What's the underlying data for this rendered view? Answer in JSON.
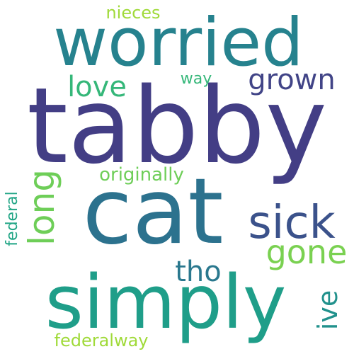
{
  "word_cloud": {
    "background": "#ffffff",
    "words": [
      {
        "id": "tabby",
        "text": "tabby",
        "color": "#433e85",
        "orientation": "horizontal"
      },
      {
        "id": "cat",
        "text": "cat",
        "color": "#2c728e",
        "orientation": "horizontal"
      },
      {
        "id": "worried",
        "text": "worried",
        "color": "#26828e",
        "orientation": "horizontal"
      },
      {
        "id": "simply",
        "text": "simply",
        "color": "#1f9e89",
        "orientation": "horizontal"
      },
      {
        "id": "sick",
        "text": "sick",
        "color": "#3b528b",
        "orientation": "horizontal"
      },
      {
        "id": "grown",
        "text": "grown",
        "color": "#414487",
        "orientation": "horizontal"
      },
      {
        "id": "love",
        "text": "love",
        "color": "#35b779",
        "orientation": "horizontal"
      },
      {
        "id": "gone",
        "text": "gone",
        "color": "#7ad151",
        "orientation": "horizontal"
      },
      {
        "id": "long",
        "text": "long",
        "color": "#6ece58",
        "orientation": "vertical"
      },
      {
        "id": "tho",
        "text": "tho",
        "color": "#2a788e",
        "orientation": "horizontal"
      },
      {
        "id": "ive",
        "text": "ive",
        "color": "#21918c",
        "orientation": "vertical"
      },
      {
        "id": "originally",
        "text": "originally",
        "color": "#6ece58",
        "orientation": "horizontal"
      },
      {
        "id": "nieces",
        "text": "nieces",
        "color": "#a0da39",
        "orientation": "horizontal"
      },
      {
        "id": "way",
        "text": "way",
        "color": "#35b779",
        "orientation": "horizontal"
      },
      {
        "id": "federal",
        "text": "federal",
        "color": "#21a585",
        "orientation": "vertical"
      },
      {
        "id": "federalway",
        "text": "federalway",
        "color": "#a0da39",
        "orientation": "horizontal"
      }
    ]
  }
}
